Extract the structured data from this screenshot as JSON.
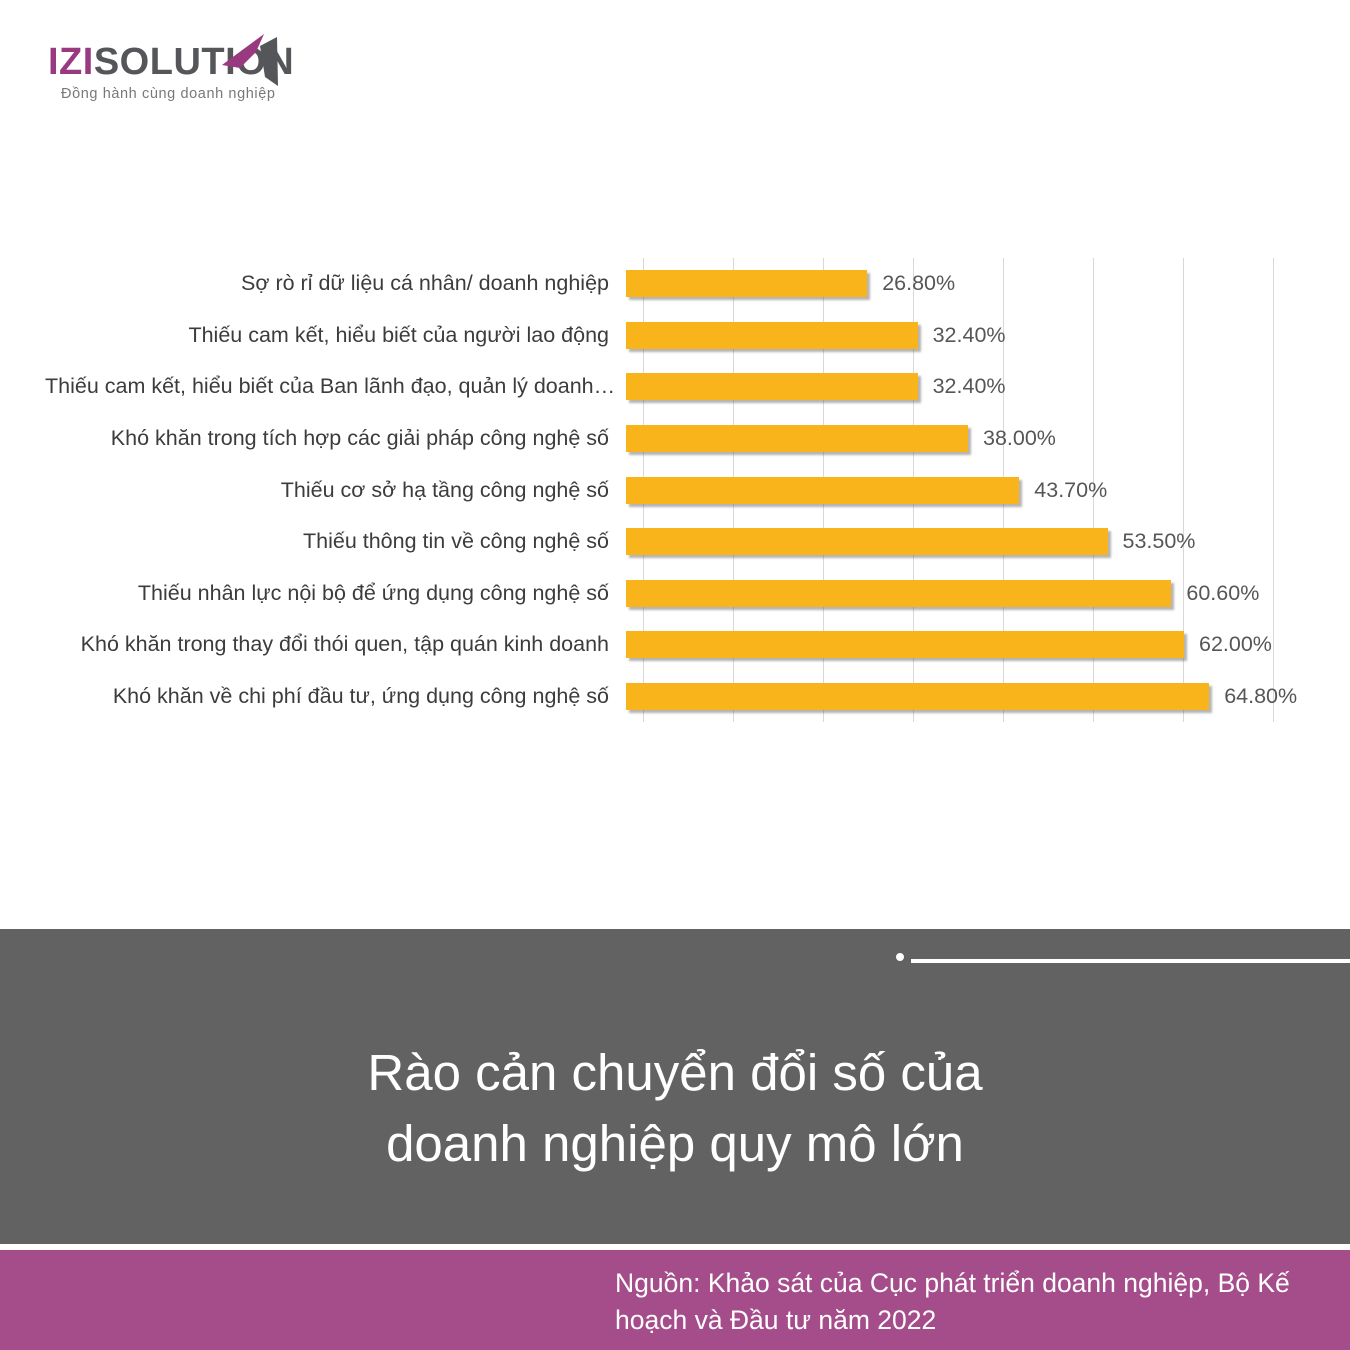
{
  "logo": {
    "izi": "IZI",
    "solution": "SOLUTION",
    "tagline": "Đồng hành cùng doanh nghiệp"
  },
  "chart_data": {
    "type": "bar",
    "orientation": "horizontal",
    "categories": [
      "Sợ rò rỉ dữ liệu cá nhân/ doanh nghiệp",
      "Thiếu cam kết, hiểu biết của người lao động",
      "Thiếu cam kết, hiểu biết của Ban lãnh đạo, quản lý doanh…",
      "Khó khăn trong tích hợp các giải pháp công nghệ số",
      "Thiếu cơ sở hạ tầng công nghệ số",
      "Thiếu thông tin về công nghệ số",
      "Thiếu nhân lực nội bộ để ứng dụng công nghệ số",
      "Khó khăn trong thay đổi thói quen, tập quán kinh doanh",
      "Khó khăn về chi phí đầu tư, ứng dụng công nghệ số"
    ],
    "values": [
      26.8,
      32.4,
      32.4,
      38.0,
      43.7,
      53.5,
      60.6,
      62.0,
      64.8
    ],
    "value_labels": [
      "26.80%",
      "32.40%",
      "32.40%",
      "38.00%",
      "43.70%",
      "53.50%",
      "60.60%",
      "62.00%",
      "64.80%"
    ],
    "title": "Rào cản chuyển đổi số của doanh nghiệp quy mô lớn",
    "xlabel": "",
    "ylabel": "",
    "xlim": [
      0,
      70
    ],
    "gridline_step": 10,
    "grid": "vertical",
    "legend": "none",
    "bar_color": "#F9B41B"
  },
  "footer": {
    "title_line1": "Rào cản chuyển đổi số của",
    "title_line2": "doanh nghiệp quy mô lớn",
    "source": "Nguồn: Khảo sát của Cục phát triển doanh nghiệp, Bộ Kế hoạch và Đầu tư năm 2022"
  },
  "colors": {
    "bar": "#F9B41B",
    "gridline": "#D8D8D8",
    "band_gray": "#626262",
    "band_purple": "#A54C8A",
    "logo_purple": "#993A80",
    "logo_gray": "#55565A"
  }
}
